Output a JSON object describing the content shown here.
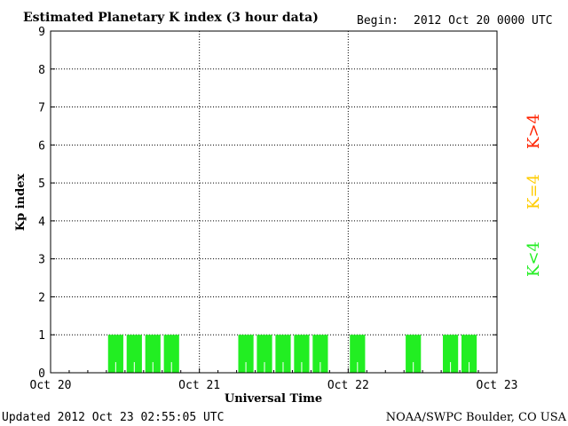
{
  "header": {
    "title": "Estimated Planetary K index (3 hour data)",
    "begin_label": "Begin:",
    "begin_value": "2012 Oct 20 0000 UTC"
  },
  "legend": {
    "high": "K>4",
    "equal": "K=4",
    "low": "K<4"
  },
  "colors": {
    "low": "#22ee22",
    "equal": "#ffcc00",
    "high": "#ff2200"
  },
  "footer": {
    "updated": "Updated 2012 Oct 23 02:55:05 UTC",
    "source": "NOAA/SWPC Boulder, CO USA"
  },
  "chart_data": {
    "type": "bar",
    "title": "Estimated Planetary K index (3 hour data)",
    "xlabel": "Universal Time",
    "ylabel": "Kp index",
    "ylim": [
      0,
      9
    ],
    "yticks": [
      0,
      1,
      2,
      3,
      4,
      5,
      6,
      7,
      8,
      9
    ],
    "xticks": [
      "Oct 20",
      "Oct 21",
      "Oct 22",
      "Oct 23"
    ],
    "grid": true,
    "interval_hours": 3,
    "x": [
      "Oct 20 00",
      "Oct 20 03",
      "Oct 20 06",
      "Oct 20 09",
      "Oct 20 12",
      "Oct 20 15",
      "Oct 20 18",
      "Oct 20 21",
      "Oct 21 00",
      "Oct 21 03",
      "Oct 21 06",
      "Oct 21 09",
      "Oct 21 12",
      "Oct 21 15",
      "Oct 21 18",
      "Oct 21 21",
      "Oct 22 00",
      "Oct 22 03",
      "Oct 22 06",
      "Oct 22 09",
      "Oct 22 12",
      "Oct 22 15",
      "Oct 22 18",
      "Oct 22 21"
    ],
    "values": [
      0,
      0,
      0,
      1,
      1,
      1,
      1,
      0,
      0,
      0,
      1,
      1,
      1,
      1,
      1,
      0,
      1,
      0,
      0,
      1,
      0,
      1,
      1,
      0
    ]
  }
}
